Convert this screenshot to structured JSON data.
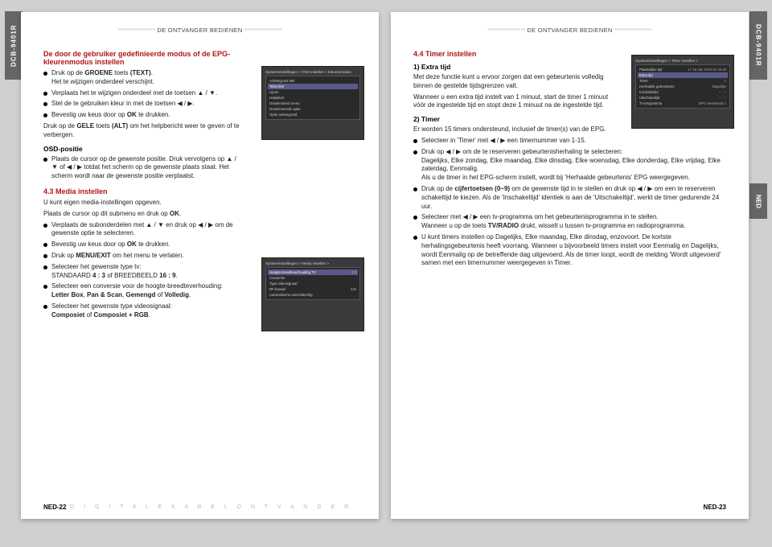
{
  "model": "DCB-9401R",
  "ned_tab": "NED",
  "header_text": "DE ONTVANGER BEDIENEN",
  "header_dots": "****************",
  "footer_bottom": "D I G I T A L E   K A B E L O N T V A N G E R",
  "page_left_num": "NED-22",
  "page_right_num": "NED-23",
  "left": {
    "sec1_title": "De door de gebruiker gedefinieerde modus of de EPG-kleurenmodus instellen",
    "sec1_b1a": "Druk op de ",
    "sec1_b1b": "GROENE",
    "sec1_b1c": " toets ",
    "sec1_b1d": "(TEXT)",
    "sec1_b1e": ".",
    "sec1_b1f": "Het te wijzigen onderdeel verschijnt.",
    "sec1_b2": "Verplaats het te wijzigen onderdeel met de toetsen ▲ / ▼.",
    "sec1_b3": "Stel de te gebruiken kleur in met de toetsen ◀ / ▶.",
    "sec1_b4a": "Bevestig uw keus door op ",
    "sec1_b4b": "OK",
    "sec1_b4c": " te drukken.",
    "sec1_p1a": "Druk op de ",
    "sec1_p1b": "GELE",
    "sec1_p1c": " toets ",
    "sec1_p1d": "(ALT)",
    "sec1_p1e": " om het helpbericht weer te geven of te verbergen.",
    "osd_title": "OSD-positie",
    "osd_b1": "Plaats de cursor op de gewenste positie. Druk vervolgens op ▲ / ▼ of ◀ / ▶ totdat het scherm op de gewenste plaats staat. Het scherm wordt naar de gewenste positie verplaatst.",
    "sec43_title": "4.3 Media instellen",
    "sec43_p1": "U kunt eigen media-instellingen opgeven.",
    "sec43_p2a": "Plaats de cursor op dit submenu en druk op ",
    "sec43_p2b": "OK",
    "sec43_p2c": ".",
    "sec43_b1": "Verplaats de subonderdelen met ▲ / ▼ en druk op ◀ / ▶ om de gewenste optie te selecteren.",
    "sec43_b2a": "Bevestig uw keus door op ",
    "sec43_b2b": "OK",
    "sec43_b2c": " te drukken.",
    "sec43_b3a": "Druk op ",
    "sec43_b3b": "MENU/EXIT",
    "sec43_b3c": " om het menu te verlaten.",
    "sec43_b4a": "Selecteer het gewenste type tv:",
    "sec43_b4b": "STANDAARD ",
    "sec43_b4c": "4 : 3",
    "sec43_b4d": " of BREEDBEELD ",
    "sec43_b4e": "16 : 9",
    "sec43_b4f": ".",
    "sec43_b5a": "Selecteer een conversie voor de hoogte-breedteverhouding:",
    "sec43_b5b": "Letter Box",
    "sec43_b5c": ", ",
    "sec43_b5d": "Pan & Scan",
    "sec43_b5e": ", ",
    "sec43_b5f": "Gemengd",
    "sec43_b5g": " of ",
    "sec43_b5h": "Volledig",
    "sec43_b5i": ".",
    "sec43_b6a": "Selecteer het gewenste type videosignaal:",
    "sec43_b6b": "Composiet",
    "sec43_b6c": " of ",
    "sec43_b6d": "Composiet + RGB",
    "sec43_b6e": "."
  },
  "right": {
    "sec44_title": "4.4 Timer instellen",
    "sub1": "1) Extra tijd",
    "p1": "Met deze functie kunt u ervoor zorgen dat een gebeurtenis volledig binnen de gestelde tijdsgrenzen valt.",
    "p2": "Wanneer u een extra tijd instelt van 1 minuut, start de timer 1 minuut vóór de ingestelde tijd en stopt deze 1 minuut na de ingestelde tijd.",
    "sub2": "2) Timer",
    "p3": "Er worden 15 timers ondersteund, inclusief de timer(s) van de EPG.",
    "b1": "Selecteer in 'Timer' met ◀ / ▶ een timernummer van 1-15.",
    "b2a": "Druk op ◀ / ▶ om de te reserveren gebeurtenisherhaling te selecteren:",
    "b2b": "Dagelijks, Elke zondag, Elke maandag, Elke dinsdag, Elke woensdag, Elke donderdag, Elke vrijdag, Elke zaterdag, Eenmalig.",
    "b2c": "Als u de timer in het EPG-scherm instelt, wordt bij 'Herhaalde gebeurtenis' EPG weergegeven.",
    "b3a": "Druk op de ",
    "b3b": "cijfertoetsen (0~9)",
    "b3c": " om de gewenste tijd in te stellen en druk op ◀ / ▶ om een te reserveren schakeltijd te kiezen. Als de 'Inschakeltijd' identiek is aan de 'Uitschakeltijd', werkt de timer gedurende 24 uur.",
    "b4": "Selecteer met ◀ / ▶ een tv-programma om het gebeurtenisprogramma in te stellen.",
    "b4b": "Wanneer u op de toets ",
    "b4c": "TV/RADIO",
    "b4d": " drukt, wisselt u tussen tv-programma en radioprogramma.",
    "b5": "U kunt timers instellen op Dagelijks, Elke maandag, Elke dinsdag, enzovoort. De kortste herhalingsgebeurtenis heeft voorrang. Wanneer u bijvoorbeeld timers instelt voor Eenmalig en Dagelijks, wordt Eenmalig op de betreffende dag uitgevoerd. Als de timer loopt, wordt de melding 'Wordt uitgevoerd' samen met een timernummer weergegeven in Timer."
  },
  "shot1": {
    "title": "Systeeminstellingen > OSD instellen > Kleurenmodus",
    "rows": [
      {
        "l": "Achtergrond titel",
        "v": ""
      },
      {
        "l": "Tekst titel",
        "v": "",
        "hl": true
      },
      {
        "l": "Lijnen",
        "v": ""
      },
      {
        "l": "Hulptekst",
        "v": ""
      },
      {
        "l": "Geselecteerd menu",
        "v": ""
      },
      {
        "l": "Geselecteerde optie",
        "v": ""
      },
      {
        "l": "Optie achtergrond",
        "v": ""
      }
    ]
  },
  "shot2": {
    "title": "Systeeminstellingen > Media instellen >",
    "rows": [
      {
        "l": "Hoogte-breedteverhouding TV",
        "v": "4:3",
        "hl": true
      },
      {
        "l": "Conversie",
        "v": ""
      },
      {
        "l": "Type videosignaal",
        "v": ""
      },
      {
        "l": "RF-kanaal",
        "v": "036"
      },
      {
        "l": "Automatische omschakeling",
        "v": ""
      }
    ]
  },
  "shot3": {
    "title": "Systeeminstellingen > Timer instellen >",
    "rows": [
      {
        "l": "Plaatselijke tijd",
        "v": "17 16 Jan 1970 01  06 33"
      },
      {
        "l": "Extra tijd",
        "v": "",
        "hl": true
      },
      {
        "l": "Timer",
        "v": "1"
      },
      {
        "l": "Herhaalde gebeurtenis",
        "v": "Dagelijks"
      },
      {
        "l": "Inschakeltijd",
        "v": "-- : --"
      },
      {
        "l": "Uitschakeltijd",
        "v": "-- : --"
      },
      {
        "l": "Tv-programma",
        "v": "NPO Nederland 1"
      }
    ]
  }
}
